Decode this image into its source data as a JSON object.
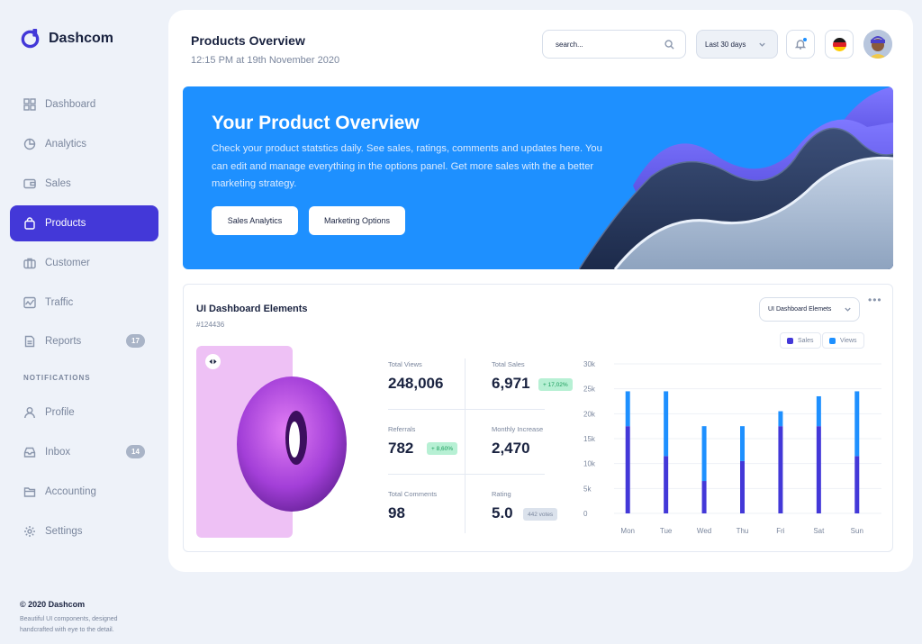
{
  "brand": {
    "name": "Dashcom"
  },
  "sidebar": {
    "items": [
      {
        "label": "Dashboard"
      },
      {
        "label": "Analytics"
      },
      {
        "label": "Sales"
      },
      {
        "label": "Products"
      },
      {
        "label": "Customer"
      },
      {
        "label": "Traffic"
      },
      {
        "label": "Reports",
        "badge": "17"
      }
    ],
    "section_label": "NOTIFICATIONS",
    "items2": [
      {
        "label": "Profile"
      },
      {
        "label": "Inbox",
        "badge": "14"
      },
      {
        "label": "Accounting"
      },
      {
        "label": "Settings"
      }
    ],
    "active_item": "Products",
    "footer_title": "© 2020 Dashcom",
    "footer_text": "Beautiful UI components, designed handcrafted with eye to the detail."
  },
  "header": {
    "title": "Products Overview",
    "subtitle": "12:15 PM at 19th November 2020",
    "search_placeholder": "search...",
    "range_label": "Last 30 days"
  },
  "hero": {
    "title": "Your Product Overview",
    "text": "Check your product statstics daily. See sales, ratings, comments and updates here. You can edit and manage everything in the options panel. Get more sales with the a better marketing strategy.",
    "button1": "Sales Analytics",
    "button2": "Marketing Options"
  },
  "card": {
    "title": "UI Dashboard Elements",
    "id": "#124436",
    "select_value": "UI Dashboard Elemets",
    "more": "•••",
    "stats": {
      "total_views": {
        "label": "Total Views",
        "value": "248,006"
      },
      "total_sales": {
        "label": "Total Sales",
        "value": "6,971",
        "badge": "+ 17,02%"
      },
      "referrals": {
        "label": "Referrals",
        "value": "782",
        "badge": "+ 8,60%"
      },
      "monthly_increase": {
        "label": "Monthly Increase",
        "value": "2,470"
      },
      "total_comments": {
        "label": "Total Comments",
        "value": "98"
      },
      "rating": {
        "label": "Rating",
        "value": "5.0",
        "badge": "442 votes"
      }
    }
  },
  "colors": {
    "accent": "#4338d8",
    "hero_bg": "#1e90ff",
    "sales": "#4338d8",
    "views": "#1e90ff",
    "badge_green": "#b7f0d4"
  },
  "chart_data": {
    "type": "bar",
    "stacked": true,
    "categories": [
      "Mon",
      "Tue",
      "Wed",
      "Thu",
      "Fri",
      "Sat",
      "Sun"
    ],
    "series": [
      {
        "name": "Sales",
        "values": [
          17500,
          11500,
          6500,
          10500,
          17500,
          17500,
          11500
        ]
      },
      {
        "name": "Views",
        "values": [
          7000,
          13000,
          11000,
          7000,
          3000,
          6000,
          13000
        ]
      }
    ],
    "y_ticks": [
      "0",
      "5k",
      "10k",
      "15k",
      "20k",
      "25k",
      "30k"
    ],
    "ylim": [
      0,
      30000
    ],
    "legend_position": "top-right",
    "grid": true
  }
}
